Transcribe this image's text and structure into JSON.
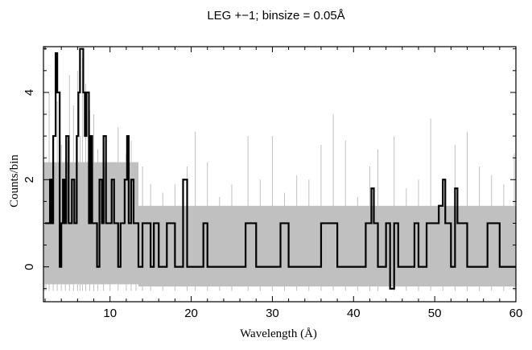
{
  "chart_data": {
    "type": "line",
    "title": "LEG +−1; binsize = 0.05Å",
    "xlabel": "Wavelength (Å)",
    "ylabel": "Counts/bin",
    "xlim": [
      1.8,
      60
    ],
    "ylim": [
      -0.8,
      5.05
    ],
    "xticks": [
      10,
      20,
      30,
      40,
      50,
      60
    ],
    "xtick_labels": [
      "10",
      "20",
      "30",
      "40",
      "50",
      "60"
    ],
    "yticks": [
      0,
      2,
      4
    ],
    "ytick_labels": [
      "0",
      "2",
      "4"
    ],
    "series": [
      {
        "role": "model / background band",
        "color": "#c0c0c0",
        "band": [
          {
            "x": [
              1.8,
              13.5
            ],
            "upper": 2.4,
            "lower": -0.4
          },
          {
            "x": [
              13.5,
              60
            ],
            "upper": 1.4,
            "lower": -0.45
          }
        ],
        "points": [
          [
            1.9,
            0.8
          ],
          [
            2.1,
            2.4
          ],
          [
            2.5,
            4.0
          ],
          [
            3.0,
            1.5
          ],
          [
            3.5,
            3.8
          ],
          [
            4.0,
            2.8
          ],
          [
            4.5,
            2.5
          ],
          [
            5.0,
            4.4
          ],
          [
            5.5,
            3.7
          ],
          [
            6.0,
            4.5
          ],
          [
            6.3,
            3.0
          ],
          [
            6.6,
            4.8
          ],
          [
            7.0,
            4.2
          ],
          [
            7.5,
            3.6
          ],
          [
            8.0,
            3.5
          ],
          [
            8.5,
            2.7
          ],
          [
            9.2,
            2.9
          ],
          [
            10.0,
            2.4
          ],
          [
            11.0,
            3.2
          ],
          [
            12.0,
            2.6
          ],
          [
            12.6,
            2.9
          ],
          [
            13.2,
            2.4
          ],
          [
            14.0,
            2.3
          ],
          [
            15.0,
            1.9
          ],
          [
            16.5,
            1.7
          ],
          [
            18.0,
            1.9
          ],
          [
            19.5,
            2.3
          ],
          [
            20.5,
            3.1
          ],
          [
            22.0,
            2.4
          ],
          [
            23.5,
            1.6
          ],
          [
            25.0,
            1.9
          ],
          [
            27.0,
            3.0
          ],
          [
            28.5,
            2.0
          ],
          [
            30.0,
            3.0
          ],
          [
            31.5,
            1.7
          ],
          [
            33.0,
            2.1
          ],
          [
            34.5,
            2.0
          ],
          [
            36.0,
            2.8
          ],
          [
            37.5,
            3.5
          ],
          [
            39.0,
            2.9
          ],
          [
            40.5,
            1.6
          ],
          [
            42.0,
            2.3
          ],
          [
            43.0,
            2.7
          ],
          [
            45.0,
            3.0
          ],
          [
            46.5,
            1.8
          ],
          [
            48.0,
            2.0
          ],
          [
            49.5,
            3.4
          ],
          [
            51.0,
            2.0
          ],
          [
            52.5,
            2.8
          ],
          [
            54.0,
            3.1
          ],
          [
            55.5,
            2.3
          ],
          [
            57.0,
            2.1
          ],
          [
            58.5,
            1.9
          ],
          [
            59.8,
            2.6
          ]
        ]
      },
      {
        "role": "observed counts (binned histogram)",
        "color": "#000000",
        "points": [
          [
            2.0,
            1
          ],
          [
            2.3,
            1
          ],
          [
            2.6,
            2
          ],
          [
            2.8,
            1
          ],
          [
            3.0,
            3
          ],
          [
            3.3,
            4.9
          ],
          [
            3.5,
            4
          ],
          [
            3.8,
            0
          ],
          [
            4.0,
            1
          ],
          [
            4.2,
            2
          ],
          [
            4.4,
            1
          ],
          [
            4.6,
            3
          ],
          [
            4.9,
            1
          ],
          [
            5.1,
            1
          ],
          [
            5.3,
            2
          ],
          [
            5.6,
            1
          ],
          [
            5.9,
            3
          ],
          [
            6.1,
            4
          ],
          [
            6.3,
            5
          ],
          [
            6.5,
            5
          ],
          [
            6.7,
            4
          ],
          [
            6.9,
            3
          ],
          [
            7.1,
            4
          ],
          [
            7.4,
            1
          ],
          [
            7.6,
            3
          ],
          [
            7.8,
            1
          ],
          [
            8.1,
            1
          ],
          [
            8.4,
            0
          ],
          [
            8.7,
            2
          ],
          [
            9.0,
            1
          ],
          [
            9.2,
            3
          ],
          [
            9.5,
            1
          ],
          [
            9.8,
            1
          ],
          [
            10.0,
            1
          ],
          [
            10.2,
            2
          ],
          [
            10.5,
            1
          ],
          [
            10.7,
            1
          ],
          [
            11.0,
            0
          ],
          [
            11.3,
            1
          ],
          [
            11.5,
            1
          ],
          [
            11.8,
            2
          ],
          [
            12.1,
            3
          ],
          [
            12.3,
            1
          ],
          [
            12.6,
            2
          ],
          [
            12.9,
            1
          ],
          [
            13.2,
            1
          ],
          [
            13.5,
            0
          ],
          [
            14.0,
            1
          ],
          [
            14.5,
            1
          ],
          [
            15.0,
            0
          ],
          [
            15.4,
            1
          ],
          [
            16.0,
            0
          ],
          [
            16.5,
            0
          ],
          [
            17.0,
            1
          ],
          [
            17.3,
            1
          ],
          [
            18.0,
            0
          ],
          [
            18.5,
            0
          ],
          [
            19.0,
            2
          ],
          [
            19.5,
            0
          ],
          [
            20.0,
            0
          ],
          [
            21.0,
            0
          ],
          [
            21.5,
            1
          ],
          [
            22.0,
            0
          ],
          [
            23.0,
            0
          ],
          [
            24.0,
            0
          ],
          [
            25.0,
            0
          ],
          [
            26.0,
            0
          ],
          [
            26.7,
            1
          ],
          [
            27.2,
            1
          ],
          [
            28.0,
            0
          ],
          [
            29.0,
            0
          ],
          [
            30.0,
            0
          ],
          [
            31.0,
            1
          ],
          [
            32.0,
            0
          ],
          [
            33.0,
            0
          ],
          [
            34.0,
            0
          ],
          [
            35.0,
            0
          ],
          [
            36.0,
            1
          ],
          [
            37.0,
            1
          ],
          [
            37.5,
            1
          ],
          [
            38.0,
            0
          ],
          [
            39.0,
            0
          ],
          [
            40.0,
            0
          ],
          [
            41.0,
            0
          ],
          [
            41.5,
            1
          ],
          [
            42.2,
            1.8
          ],
          [
            42.5,
            1
          ],
          [
            43.0,
            0
          ],
          [
            44.0,
            1
          ],
          [
            44.5,
            -0.5
          ],
          [
            45.0,
            1
          ],
          [
            45.5,
            0
          ],
          [
            46.0,
            0
          ],
          [
            47.0,
            0
          ],
          [
            47.5,
            1
          ],
          [
            48.0,
            0
          ],
          [
            49.0,
            1
          ],
          [
            49.5,
            1
          ],
          [
            50.0,
            1
          ],
          [
            50.5,
            1.4
          ],
          [
            51.0,
            2
          ],
          [
            51.3,
            1
          ],
          [
            51.7,
            1
          ],
          [
            52.0,
            0
          ],
          [
            52.5,
            1.8
          ],
          [
            52.8,
            1
          ],
          [
            53.0,
            1
          ],
          [
            53.5,
            1
          ],
          [
            54.0,
            0
          ],
          [
            55.0,
            0
          ],
          [
            56.0,
            0
          ],
          [
            56.5,
            1
          ],
          [
            57.0,
            1
          ],
          [
            57.5,
            1
          ],
          [
            58.0,
            0
          ],
          [
            59.0,
            0
          ],
          [
            60.0,
            0
          ]
        ]
      }
    ],
    "grid": false,
    "legend": "none",
    "colors": {
      "band": "#c0c0c0",
      "trace": "#000000",
      "axes": "#000000"
    }
  }
}
